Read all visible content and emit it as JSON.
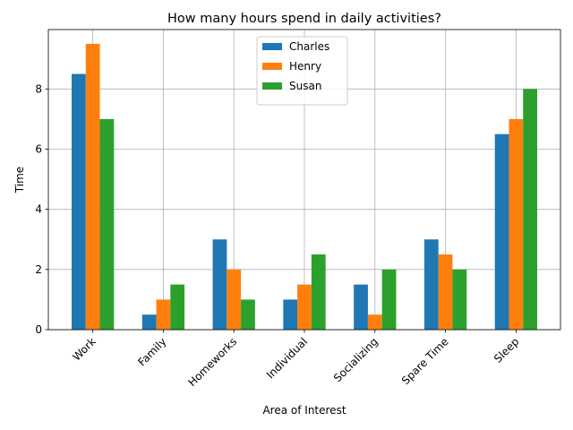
{
  "chart_data": {
    "type": "bar",
    "title": "How many hours spend in daily activities?",
    "xlabel": "Area of Interest",
    "ylabel": "Time",
    "categories": [
      "Work",
      "Family",
      "Homeworks",
      "Individual",
      "Socializing",
      "Spare Time",
      "Sleep"
    ],
    "series": [
      {
        "name": "Charles",
        "color": "#1f77b4",
        "values": [
          8.5,
          0.5,
          3,
          1,
          1.5,
          3,
          6.5
        ]
      },
      {
        "name": "Henry",
        "color": "#ff7f0e",
        "values": [
          9.5,
          1,
          2,
          1.5,
          0.5,
          2.5,
          7
        ]
      },
      {
        "name": "Susan",
        "color": "#2ca02c",
        "values": [
          7,
          1.5,
          1,
          2.5,
          2,
          2,
          8
        ]
      }
    ],
    "ylim": [
      0,
      9.975
    ],
    "yticks": [
      0,
      2,
      4,
      6,
      8
    ],
    "grid": true,
    "legend_position": "top-center",
    "x_tick_rotation_deg": 45
  }
}
